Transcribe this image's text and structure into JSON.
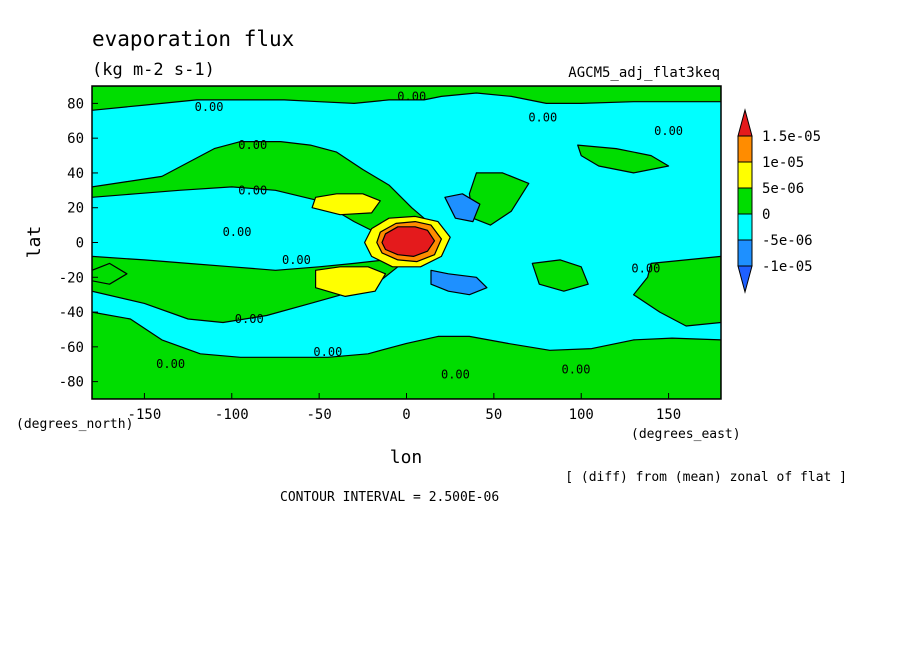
{
  "chart_data": {
    "type": "contour",
    "title": "evaporation flux",
    "units": "(kg m-2 s-1)",
    "experiment": "AGCM5_adj_flat3keq",
    "xlabel": "lon",
    "ylabel": "lat",
    "x_units_label": "(degrees_east)",
    "y_units_label": "(degrees_north)",
    "footnote": "[ (diff) from (mean) zonal of flat ]",
    "contour_interval": "CONTOUR INTERVAL = 2.500E-06",
    "xlim": [
      -180,
      180
    ],
    "ylim": [
      -90,
      90
    ],
    "x_ticks": [
      -150,
      -100,
      -50,
      0,
      50,
      100,
      150
    ],
    "x_tick_labels": [
      "-150",
      "-100",
      "-50",
      "0",
      "50",
      "100",
      "150"
    ],
    "y_ticks": [
      80,
      60,
      40,
      20,
      0,
      -20,
      -40,
      -60,
      -80
    ],
    "y_tick_labels": [
      "80",
      "60",
      "40",
      "20",
      "0",
      "-20",
      "-40",
      "-60",
      "-80"
    ],
    "colorbar": {
      "labels": [
        "1.5e-05",
        "1e-05",
        "5e-06",
        "0",
        "-5e-06",
        "-1e-05"
      ],
      "colors": [
        "#e41a1c",
        "#ff8c00",
        "#ffff00",
        "#00dd00",
        "#00ffff",
        "#1e90ff",
        "#1e60ff"
      ]
    },
    "contour_labels": [
      {
        "text": "0.00",
        "lon": -113,
        "lat": 78
      },
      {
        "text": "0.00",
        "lon": 3,
        "lat": 84
      },
      {
        "text": "0.00",
        "lon": 78,
        "lat": 72
      },
      {
        "text": "0.00",
        "lon": 150,
        "lat": 64
      },
      {
        "text": "0.00",
        "lon": -88,
        "lat": 56
      },
      {
        "text": "0.00",
        "lon": -88,
        "lat": 30
      },
      {
        "text": "0.00",
        "lon": -97,
        "lat": 6
      },
      {
        "text": "0.00",
        "lon": -63,
        "lat": -10
      },
      {
        "text": "0.00",
        "lon": 137,
        "lat": -15
      },
      {
        "text": "0.00",
        "lon": -90,
        "lat": -44
      },
      {
        "text": "0.00",
        "lon": -45,
        "lat": -63
      },
      {
        "text": "0.00",
        "lon": -135,
        "lat": -70
      },
      {
        "text": "0.00",
        "lon": 28,
        "lat": -76
      },
      {
        "text": "0.00",
        "lon": 97,
        "lat": -73
      }
    ],
    "field_regions": [
      {
        "level": "pos_5e-06",
        "points": [
          [
            -180,
            76
          ],
          [
            -150,
            79
          ],
          [
            -120,
            82
          ],
          [
            -95,
            82
          ],
          [
            -70,
            82
          ],
          [
            -50,
            81
          ],
          [
            -30,
            80
          ],
          [
            -10,
            82
          ],
          [
            10,
            82
          ],
          [
            20,
            84
          ],
          [
            40,
            86
          ],
          [
            60,
            84
          ],
          [
            80,
            80
          ],
          [
            100,
            80
          ],
          [
            130,
            81
          ],
          [
            150,
            81
          ],
          [
            180,
            81
          ],
          [
            180,
            90
          ],
          [
            -180,
            90
          ]
        ]
      },
      {
        "level": "pos_5e-06",
        "points": [
          [
            -180,
            32
          ],
          [
            -160,
            35
          ],
          [
            -140,
            38
          ],
          [
            -125,
            46
          ],
          [
            -110,
            54
          ],
          [
            -95,
            58
          ],
          [
            -72,
            58
          ],
          [
            -55,
            56
          ],
          [
            -40,
            52
          ],
          [
            -25,
            42
          ],
          [
            -10,
            33
          ],
          [
            3,
            20
          ],
          [
            10,
            14
          ],
          [
            3,
            10
          ],
          [
            -18,
            6
          ],
          [
            -30,
            12
          ],
          [
            -50,
            24
          ],
          [
            -75,
            30
          ],
          [
            -100,
            32
          ],
          [
            -130,
            30
          ],
          [
            -155,
            28
          ],
          [
            -180,
            26
          ]
        ]
      },
      {
        "level": "pos_5e-06",
        "points": [
          [
            -180,
            -8
          ],
          [
            -150,
            -10
          ],
          [
            -125,
            -12
          ],
          [
            -100,
            -14
          ],
          [
            -75,
            -16
          ],
          [
            -50,
            -14
          ],
          [
            -30,
            -12
          ],
          [
            -12,
            -10
          ],
          [
            -5,
            -14
          ],
          [
            -15,
            -22
          ],
          [
            -30,
            -28
          ],
          [
            -55,
            -35
          ],
          [
            -80,
            -42
          ],
          [
            -105,
            -46
          ],
          [
            -125,
            -44
          ],
          [
            -150,
            -35
          ],
          [
            -180,
            -28
          ]
        ]
      },
      {
        "level": "pos_5e-06",
        "points": [
          [
            -180,
            -40
          ],
          [
            -158,
            -44
          ],
          [
            -140,
            -56
          ],
          [
            -118,
            -64
          ],
          [
            -95,
            -66
          ],
          [
            -70,
            -66
          ],
          [
            -45,
            -66
          ],
          [
            -22,
            -64
          ],
          [
            0,
            -58
          ],
          [
            18,
            -54
          ],
          [
            36,
            -54
          ],
          [
            58,
            -58
          ],
          [
            82,
            -62
          ],
          [
            106,
            -61
          ],
          [
            130,
            -56
          ],
          [
            152,
            -55
          ],
          [
            180,
            -56
          ],
          [
            180,
            -90
          ],
          [
            -180,
            -90
          ]
        ]
      },
      {
        "level": "pos_5e-06",
        "points": [
          [
            40,
            40
          ],
          [
            55,
            40
          ],
          [
            70,
            34
          ],
          [
            60,
            18
          ],
          [
            48,
            10
          ],
          [
            38,
            14
          ],
          [
            36,
            28
          ]
        ]
      },
      {
        "level": "pos_5e-06",
        "points": [
          [
            98,
            56
          ],
          [
            120,
            54
          ],
          [
            140,
            50
          ],
          [
            150,
            44
          ],
          [
            130,
            40
          ],
          [
            110,
            44
          ],
          [
            100,
            50
          ]
        ]
      },
      {
        "level": "pos_5e-06",
        "points": [
          [
            140,
            -12
          ],
          [
            160,
            -10
          ],
          [
            180,
            -8
          ],
          [
            180,
            -46
          ],
          [
            160,
            -48
          ],
          [
            145,
            -40
          ],
          [
            130,
            -30
          ],
          [
            138,
            -20
          ]
        ]
      },
      {
        "level": "pos_5e-06",
        "points": [
          [
            72,
            -12
          ],
          [
            88,
            -10
          ],
          [
            100,
            -14
          ],
          [
            104,
            -24
          ],
          [
            90,
            -28
          ],
          [
            76,
            -24
          ]
        ]
      },
      {
        "level": "pos_5e-06",
        "points": [
          [
            -180,
            -16
          ],
          [
            -170,
            -12
          ],
          [
            -160,
            -18
          ],
          [
            -170,
            -24
          ],
          [
            -180,
            -22
          ]
        ]
      },
      {
        "level": "pos_1e-05",
        "points": [
          [
            -52,
            26
          ],
          [
            -40,
            28
          ],
          [
            -25,
            28
          ],
          [
            -15,
            24
          ],
          [
            -20,
            17
          ],
          [
            -38,
            16
          ],
          [
            -54,
            20
          ]
        ]
      },
      {
        "level": "pos_1e-05",
        "points": [
          [
            -52,
            -16
          ],
          [
            -38,
            -14
          ],
          [
            -22,
            -14
          ],
          [
            -12,
            -18
          ],
          [
            -18,
            -28
          ],
          [
            -35,
            -31
          ],
          [
            -52,
            -26
          ]
        ]
      },
      {
        "level": "pos_1e-05",
        "points": [
          [
            -20,
            8
          ],
          [
            -10,
            14
          ],
          [
            5,
            15
          ],
          [
            18,
            12
          ],
          [
            25,
            3
          ],
          [
            20,
            -8
          ],
          [
            8,
            -14
          ],
          [
            -8,
            -14
          ],
          [
            -20,
            -8
          ],
          [
            -24,
            0
          ]
        ]
      },
      {
        "level": "pos_1.5e-05",
        "points": [
          [
            -15,
            6
          ],
          [
            -6,
            11
          ],
          [
            5,
            12
          ],
          [
            14,
            10
          ],
          [
            20,
            2
          ],
          [
            16,
            -7
          ],
          [
            6,
            -11
          ],
          [
            -5,
            -10
          ],
          [
            -14,
            -6
          ],
          [
            -17,
            0
          ]
        ]
      },
      {
        "level": "pos_max",
        "points": [
          [
            -12,
            5
          ],
          [
            -5,
            9
          ],
          [
            5,
            9
          ],
          [
            12,
            7
          ],
          [
            16,
            1
          ],
          [
            12,
            -5
          ],
          [
            4,
            -8
          ],
          [
            -5,
            -7
          ],
          [
            -12,
            -4
          ],
          [
            -14,
            0
          ]
        ]
      },
      {
        "level": "neg_1e-05",
        "points": [
          [
            22,
            26
          ],
          [
            32,
            28
          ],
          [
            42,
            22
          ],
          [
            38,
            12
          ],
          [
            28,
            14
          ]
        ]
      },
      {
        "level": "neg_1e-05",
        "points": [
          [
            14,
            -16
          ],
          [
            24,
            -18
          ],
          [
            40,
            -20
          ],
          [
            46,
            -26
          ],
          [
            36,
            -30
          ],
          [
            24,
            -28
          ],
          [
            14,
            -24
          ]
        ]
      }
    ]
  }
}
